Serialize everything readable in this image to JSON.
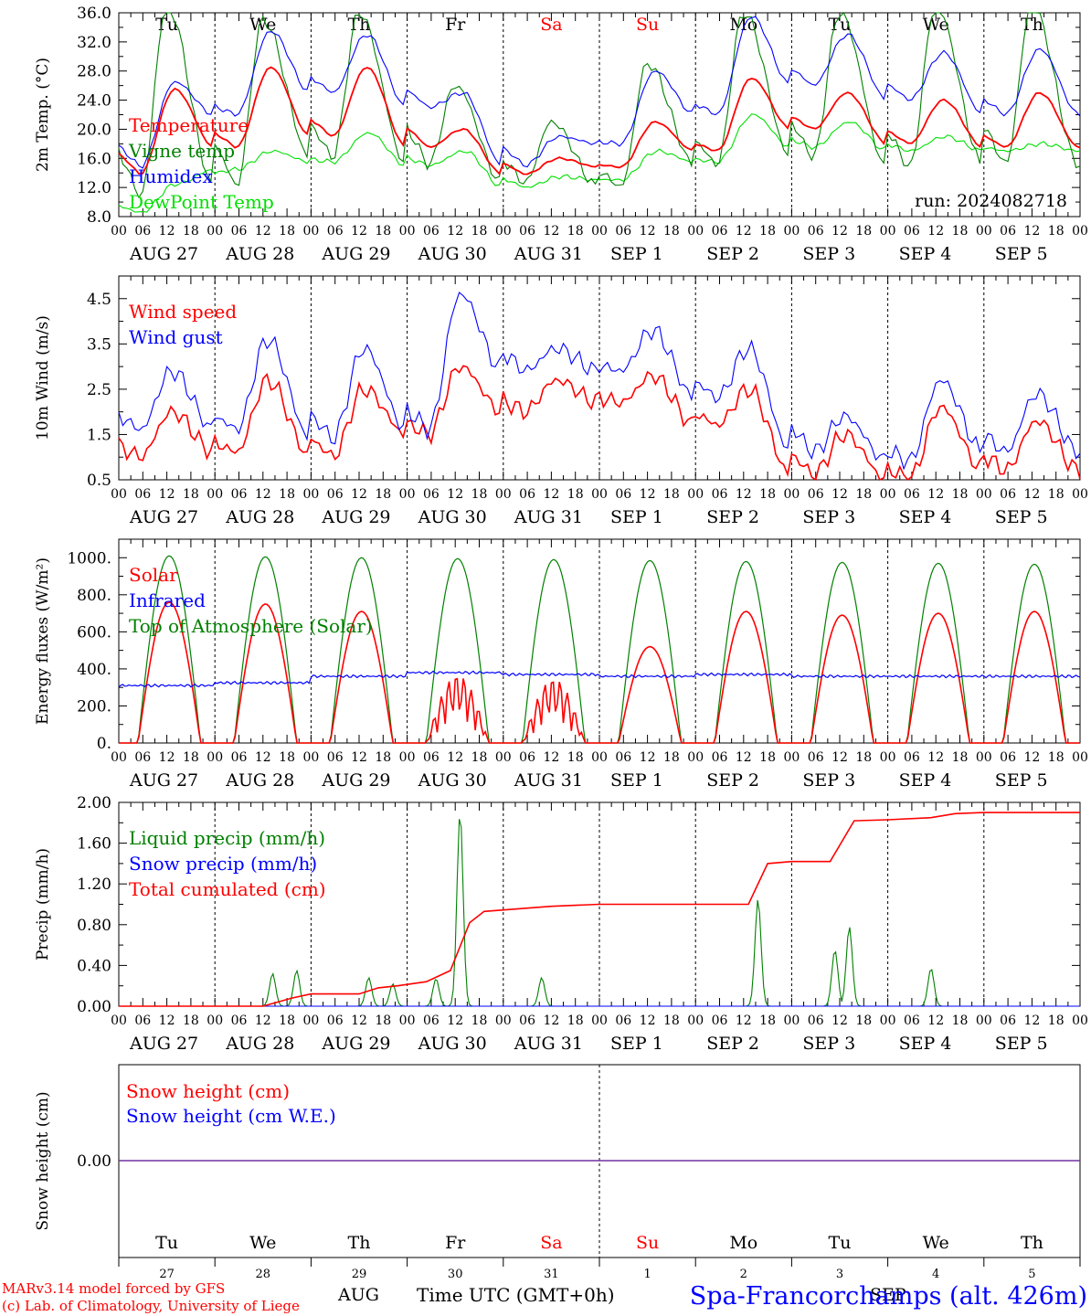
{
  "colors": {
    "red": "#ff0000",
    "green": "#008000",
    "blue": "#0000ff",
    "lightgreen": "#00e000",
    "purple": "#7030a0"
  },
  "hour_ticks": [
    "00",
    "06",
    "12",
    "18"
  ],
  "dates": [
    "AUG 27",
    "AUG 28",
    "AUG 29",
    "AUG 30",
    "AUG 31",
    "SEP  1",
    "SEP  2",
    "SEP  3",
    "SEP  4",
    "SEP  5"
  ],
  "weekdays": [
    "Tu",
    "We",
    "Th",
    "Fr",
    "Sa",
    "Su",
    "Mo",
    "Tu",
    "We",
    "Th"
  ],
  "weekday_colors": [
    "black",
    "black",
    "black",
    "black",
    "red",
    "red",
    "black",
    "black",
    "black",
    "black"
  ],
  "bottom_days": [
    "27",
    "28",
    "29",
    "30",
    "31",
    "1",
    "2",
    "3",
    "4",
    "5"
  ],
  "footer": {
    "line1": "MARv3.14 model forced by GFS",
    "line2": "(c) Lab. of Climatology, University of Liege",
    "aug": "AUG",
    "sep": "SEP",
    "time_label": "Time UTC (GMT+0h)",
    "station": "Spa-Francorchamps (alt. 426m)"
  },
  "chart_data": [
    {
      "type": "line",
      "ylabel": "2m Temp. (°C)",
      "ylim": [
        8,
        36
      ],
      "yticks": [
        "8.0",
        "12.0",
        "16.0",
        "20.0",
        "24.0",
        "28.0",
        "32.0",
        "36.0"
      ],
      "run": "run: 2024082718",
      "series": [
        {
          "name": "Temperature",
          "color": "red",
          "daily_min": [
            13.8,
            17.5,
            19.0,
            17.5,
            13.8,
            14.8,
            17.0,
            20.0,
            18.0,
            17.5
          ],
          "daily_max": [
            25.5,
            28.5,
            28.5,
            20.0,
            16.0,
            21.0,
            27.0,
            25.0,
            24.0,
            25.0
          ]
        },
        {
          "name": "Vigne temp",
          "color": "green",
          "daily_min": [
            10.5,
            12.0,
            16.0,
            15.0,
            12.5,
            12.0,
            15.0,
            16.0,
            14.5,
            15.0
          ],
          "daily_max": [
            37.0,
            35.0,
            36.0,
            26.0,
            21.0,
            29.0,
            36.0,
            36.0,
            37.0,
            37.0
          ]
        },
        {
          "name": "Humidex",
          "color": "blue",
          "daily_min": [
            14.8,
            22.0,
            25.0,
            23.0,
            15.0,
            18.0,
            22.0,
            26.0,
            24.0,
            22.0
          ],
          "daily_max": [
            26.5,
            33.5,
            33.0,
            25.0,
            19.0,
            28.0,
            35.5,
            33.0,
            30.5,
            31.0
          ]
        },
        {
          "name": "DewPoint Temp",
          "color": "lightgreen",
          "daily_min": [
            8.5,
            14.5,
            15.5,
            15.0,
            12.0,
            13.0,
            15.5,
            17.5,
            17.0,
            17.0
          ],
          "daily_max": [
            12.5,
            17.0,
            19.5,
            17.0,
            13.5,
            17.0,
            22.0,
            21.0,
            19.0,
            18.0
          ]
        }
      ]
    },
    {
      "type": "line",
      "ylabel": "10m Wind (m/s)",
      "ylim": [
        0.5,
        5.0
      ],
      "yticks": [
        "0.5",
        "1.5",
        "2.5",
        "3.5",
        "4.5"
      ],
      "series": [
        {
          "name": "Wind speed",
          "color": "red",
          "daily_min": [
            1.0,
            1.1,
            1.0,
            1.5,
            2.0,
            2.2,
            1.7,
            0.6,
            0.5,
            0.7
          ],
          "daily_max": [
            2.0,
            2.7,
            2.5,
            3.0,
            2.7,
            2.8,
            2.5,
            1.5,
            2.1,
            1.8
          ]
        },
        {
          "name": "Wind gust",
          "color": "blue",
          "daily_min": [
            1.6,
            1.6,
            1.4,
            1.6,
            2.9,
            2.9,
            2.3,
            1.1,
            0.9,
            1.1
          ],
          "daily_max": [
            2.9,
            3.6,
            3.4,
            4.6,
            3.4,
            3.8,
            3.4,
            1.9,
            2.7,
            2.4
          ]
        }
      ]
    },
    {
      "type": "line",
      "ylabel": "Energy fluxes (W/m²)",
      "ylim": [
        0,
        1100
      ],
      "yticks": [
        "0.",
        "200.",
        "400.",
        "600.",
        "800.",
        "1000."
      ],
      "series": [
        {
          "name": "Solar",
          "color": "red",
          "daily_max": [
            760,
            750,
            710,
            370,
            350,
            520,
            710,
            690,
            700,
            710
          ]
        },
        {
          "name": "Infrared",
          "color": "blue",
          "daily_mean": [
            310,
            325,
            360,
            380,
            370,
            360,
            370,
            360,
            360,
            360
          ]
        },
        {
          "name": "Top of Atmosphere (Solar)",
          "color": "green",
          "daily_max": [
            1010,
            1005,
            1000,
            995,
            990,
            985,
            980,
            975,
            970,
            965
          ]
        }
      ]
    },
    {
      "type": "line",
      "ylabel": "Precip (mm/h)",
      "ylim": [
        0,
        2.0
      ],
      "yticks": [
        "0.00",
        "0.40",
        "0.80",
        "1.20",
        "1.60",
        "2.00"
      ],
      "series": [
        {
          "name": "Liquid precip (mm/h)",
          "color": "green",
          "peaks": [
            [
              1.6,
              0.32
            ],
            [
              1.85,
              0.35
            ],
            [
              2.6,
              0.28
            ],
            [
              2.85,
              0.22
            ],
            [
              3.3,
              0.27
            ],
            [
              3.55,
              1.9
            ],
            [
              4.4,
              0.28
            ],
            [
              6.65,
              1.05
            ],
            [
              7.45,
              0.55
            ],
            [
              7.6,
              0.78
            ],
            [
              8.45,
              0.37
            ]
          ]
        },
        {
          "name": "Snow precip (mm/h)",
          "color": "blue"
        },
        {
          "name": "Total cumulated (cm)",
          "color": "red",
          "x": [
            0,
            1.5,
            1.8,
            2.0,
            2.5,
            2.7,
            2.9,
            3.2,
            3.45,
            3.65,
            3.8,
            4.5,
            5.0,
            6.0,
            6.55,
            6.75,
            7.0,
            7.4,
            7.65,
            8.0,
            8.45,
            8.7,
            9.0,
            10.0
          ],
          "y": [
            0,
            0,
            0.08,
            0.12,
            0.12,
            0.18,
            0.2,
            0.24,
            0.35,
            0.82,
            0.93,
            0.98,
            1.0,
            1.0,
            1.0,
            1.4,
            1.42,
            1.42,
            1.82,
            1.83,
            1.85,
            1.89,
            1.9,
            1.9
          ]
        }
      ]
    },
    {
      "type": "line",
      "ylabel": "Snow height (cm)",
      "yticks": [
        "0.00"
      ],
      "series": [
        {
          "name": "Snow height (cm)",
          "color": "red",
          "values": [
            0
          ]
        },
        {
          "name": "Snow height (cm W.E.)",
          "color": "blue",
          "values": [
            0
          ]
        }
      ]
    }
  ]
}
